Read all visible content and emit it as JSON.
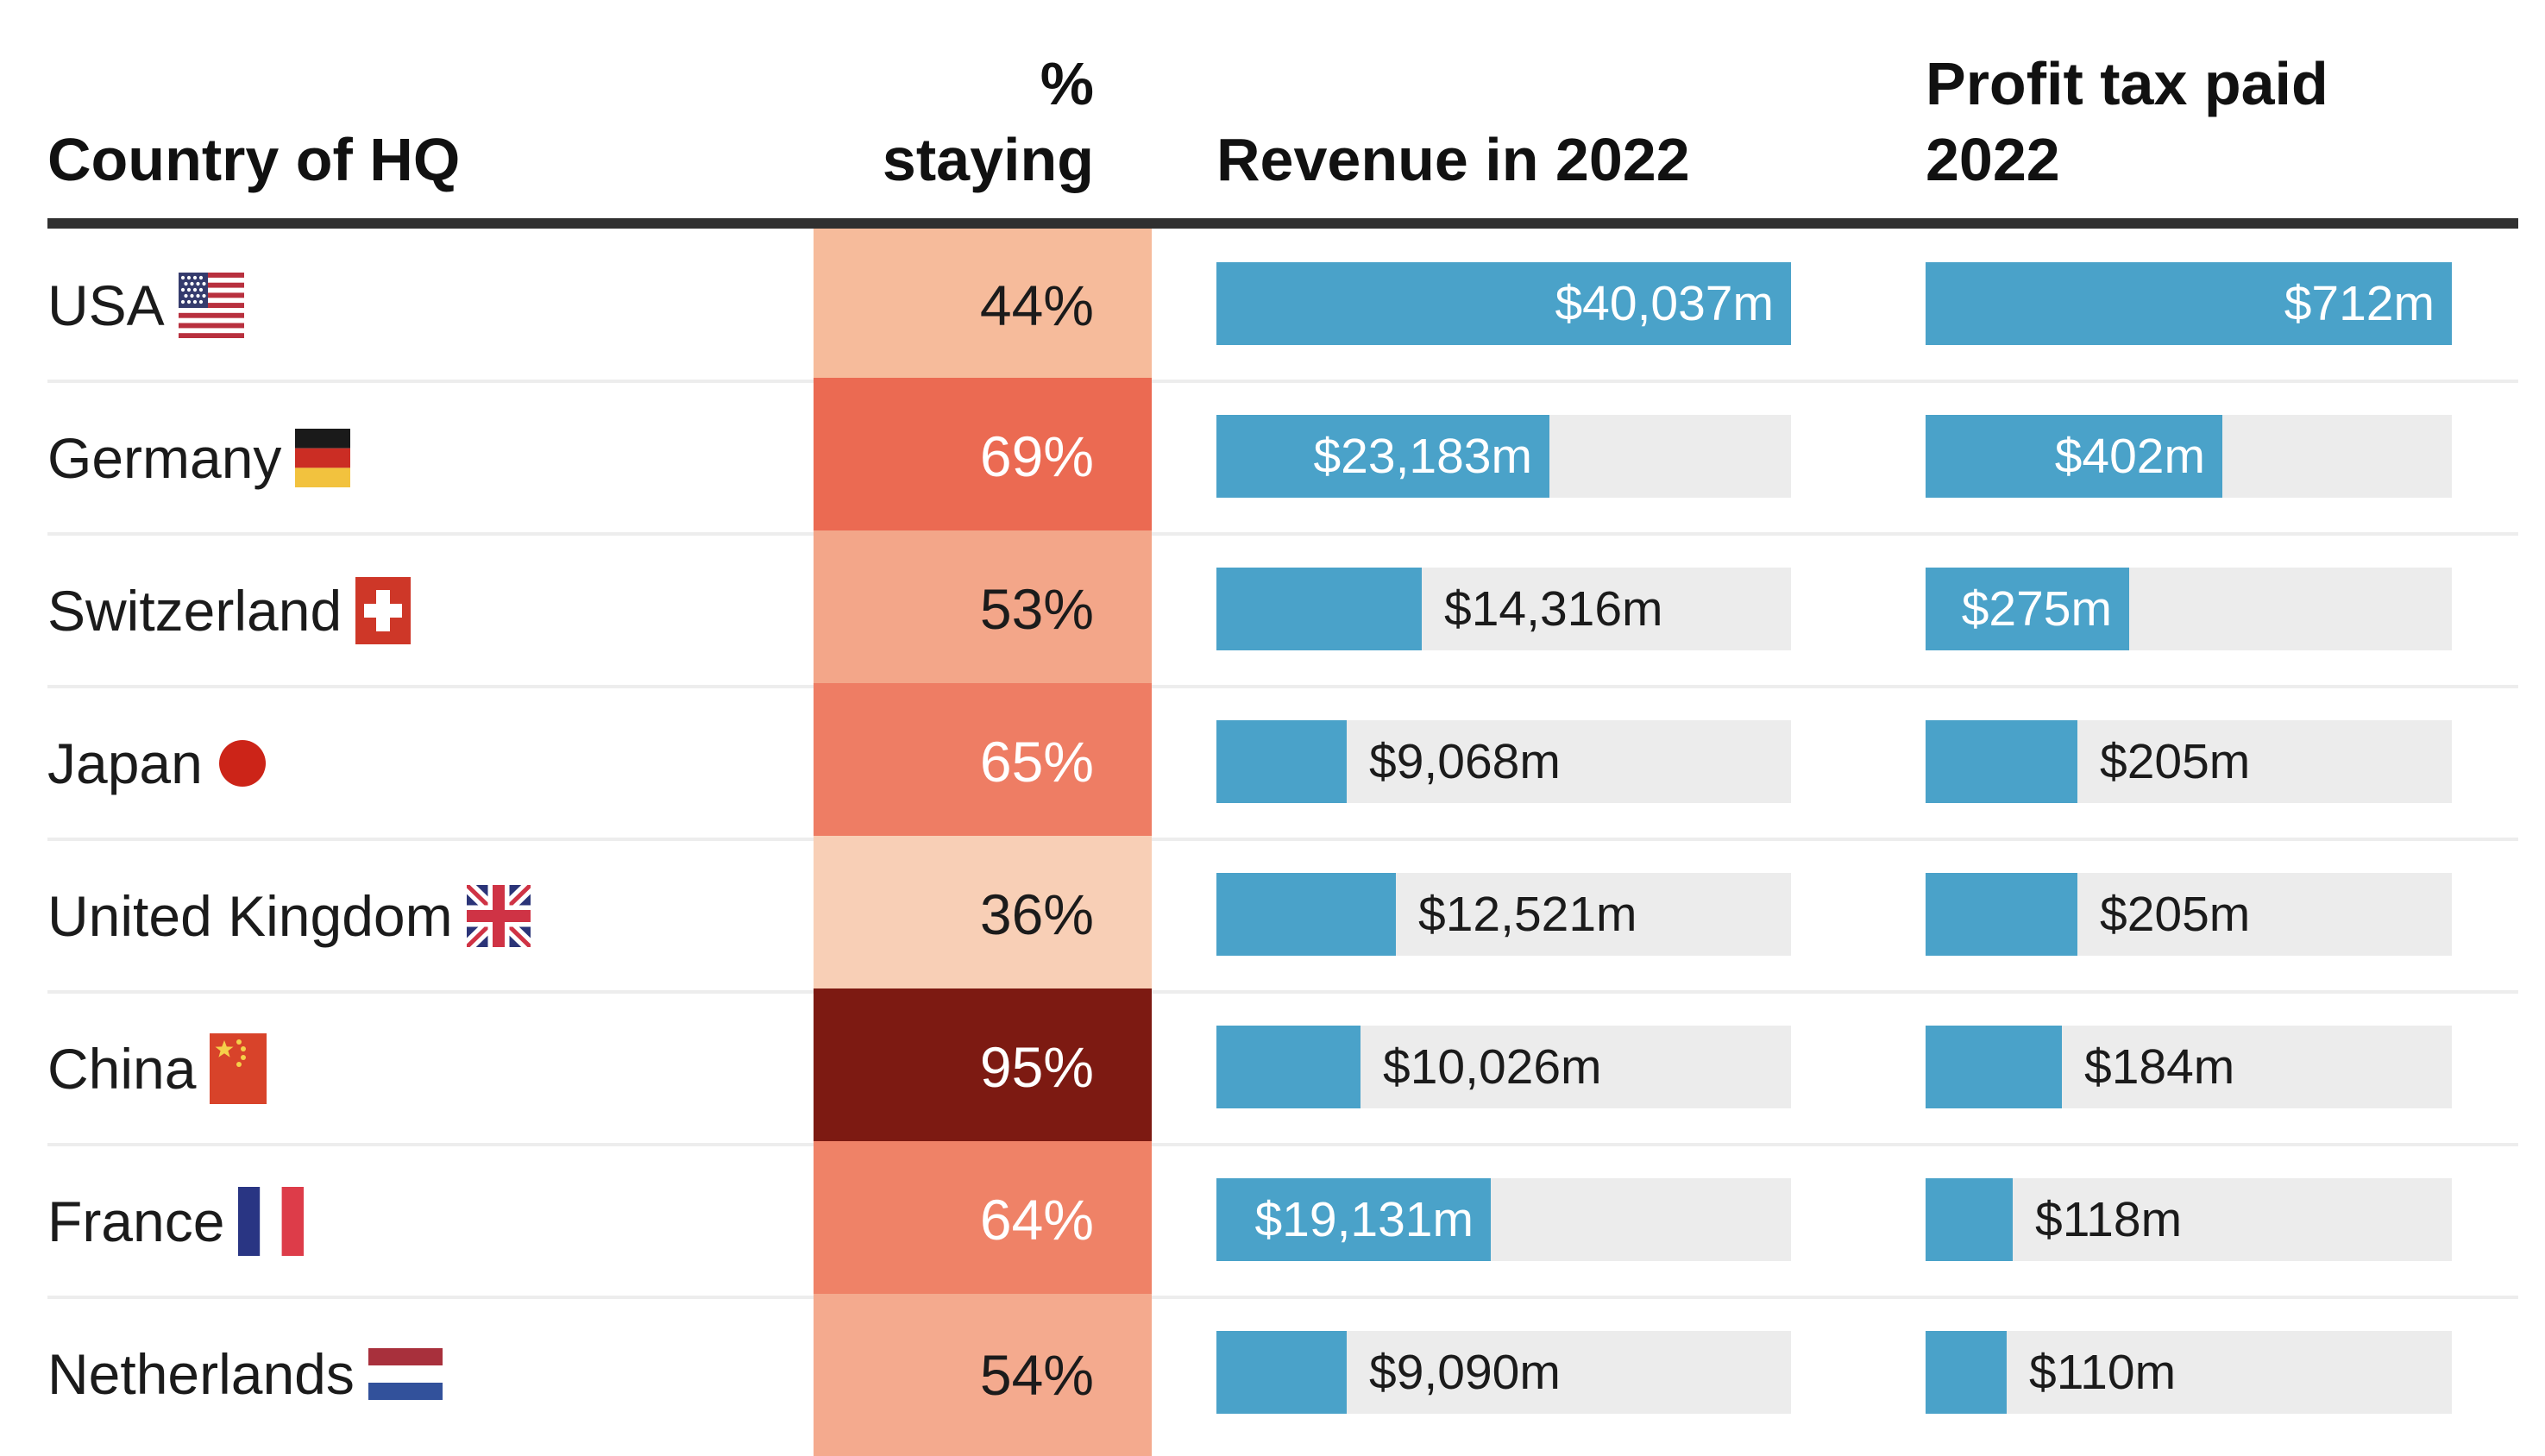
{
  "header": {
    "country": "Country of HQ",
    "staying": "% staying",
    "revenue": "Revenue in 2022",
    "profit": "Profit tax paid 2022"
  },
  "colors": {
    "bar": "#4aa2c9",
    "bar_track": "#ececec",
    "header_rule": "#303030",
    "row_divider": "#ededed",
    "text_dark": "#1b1b1b",
    "text_light": "#ffffff"
  },
  "chart_data": {
    "type": "bar",
    "layout": "table with heat-colored % column and two horizontal bar columns",
    "revenue_axis_max_m": 40037,
    "profit_axis_max_m": 712,
    "rows": [
      {
        "country": "USA",
        "flag": "usa",
        "staying_pct": 44,
        "staying_label": "44%",
        "staying_cell_color": "#f6bb9b",
        "staying_text_color": "#1b1b1b",
        "revenue_m": 40037,
        "revenue_label": "$40,037m",
        "revenue_label_position": "inside",
        "profit_m": 712,
        "profit_label": "$712m",
        "profit_label_position": "inside"
      },
      {
        "country": "Germany",
        "flag": "germany",
        "staying_pct": 69,
        "staying_label": "69%",
        "staying_cell_color": "#eb6a52",
        "staying_text_color": "#ffffff",
        "revenue_m": 23183,
        "revenue_label": "$23,183m",
        "revenue_label_position": "inside",
        "profit_m": 402,
        "profit_label": "$402m",
        "profit_label_position": "inside"
      },
      {
        "country": "Switzerland",
        "flag": "switzerland",
        "staying_pct": 53,
        "staying_label": "53%",
        "staying_cell_color": "#f3a689",
        "staying_text_color": "#1b1b1b",
        "revenue_m": 14316,
        "revenue_label": "$14,316m",
        "revenue_label_position": "outside",
        "profit_m": 275,
        "profit_label": "$275m",
        "profit_label_position": "inside"
      },
      {
        "country": "Japan",
        "flag": "japan",
        "staying_pct": 65,
        "staying_label": "65%",
        "staying_cell_color": "#ee7d64",
        "staying_text_color": "#ffffff",
        "revenue_m": 9068,
        "revenue_label": "$9,068m",
        "revenue_label_position": "outside",
        "profit_m": 205,
        "profit_label": "$205m",
        "profit_label_position": "outside"
      },
      {
        "country": "United Kingdom",
        "flag": "uk",
        "staying_pct": 36,
        "staying_label": "36%",
        "staying_cell_color": "#f8cfb6",
        "staying_text_color": "#1b1b1b",
        "revenue_m": 12521,
        "revenue_label": "$12,521m",
        "revenue_label_position": "outside",
        "profit_m": 205,
        "profit_label": "$205m",
        "profit_label_position": "outside"
      },
      {
        "country": "China",
        "flag": "china",
        "staying_pct": 95,
        "staying_label": "95%",
        "staying_cell_color": "#7d1a12",
        "staying_text_color": "#ffffff",
        "revenue_m": 10026,
        "revenue_label": "$10,026m",
        "revenue_label_position": "outside",
        "profit_m": 184,
        "profit_label": "$184m",
        "profit_label_position": "outside"
      },
      {
        "country": "France",
        "flag": "france",
        "staying_pct": 64,
        "staying_label": "64%",
        "staying_cell_color": "#ef8267",
        "staying_text_color": "#ffffff",
        "revenue_m": 19131,
        "revenue_label": "$19,131m",
        "revenue_label_position": "inside",
        "profit_m": 118,
        "profit_label": "$118m",
        "profit_label_position": "outside"
      },
      {
        "country": "Netherlands",
        "flag": "netherlands",
        "staying_pct": 54,
        "staying_label": "54%",
        "staying_cell_color": "#f4aa8e",
        "staying_text_color": "#1b1b1b",
        "revenue_m": 9090,
        "revenue_label": "$9,090m",
        "revenue_label_position": "outside",
        "profit_m": 110,
        "profit_label": "$110m",
        "profit_label_position": "outside"
      }
    ]
  }
}
